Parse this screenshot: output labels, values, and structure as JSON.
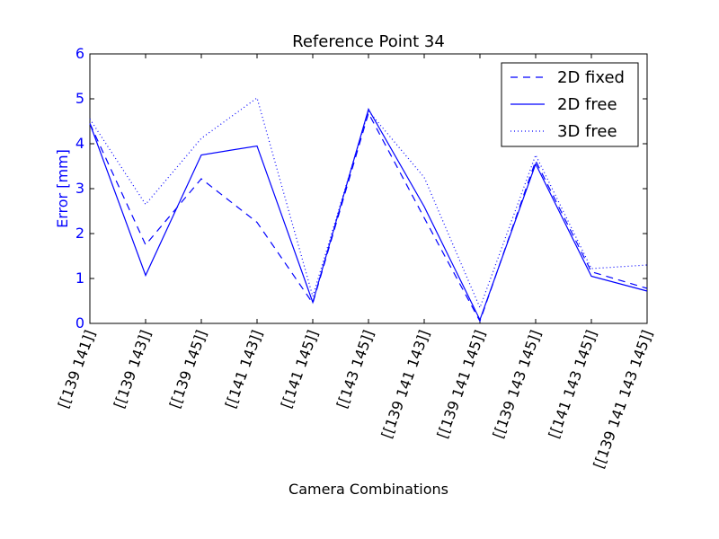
{
  "chart_data": {
    "type": "line",
    "title": "Reference Point 34",
    "xlabel": "Camera Combinations",
    "ylabel": "Error [mm]",
    "ylim": [
      0,
      6
    ],
    "yticks": [
      "0",
      "1",
      "2",
      "3",
      "4",
      "5",
      "6"
    ],
    "categories": [
      "[[139 141]]",
      "[[139 143]]",
      "[[139 145]]",
      "[[141 143]]",
      "[[141 145]]",
      "[[143 145]]",
      "[[139 141 143]]",
      "[[139 141 145]]",
      "[[139 143 145]]",
      "[[141 143 145]]",
      "[[139 141 143 145]]"
    ],
    "series": [
      {
        "name": "2D fixed",
        "style": "dashed",
        "values": [
          4.45,
          1.75,
          3.22,
          2.25,
          0.45,
          4.68,
          2.35,
          0.05,
          3.62,
          1.15,
          0.78
        ]
      },
      {
        "name": "2D free",
        "style": "solid",
        "values": [
          4.45,
          1.07,
          3.75,
          3.95,
          0.47,
          4.77,
          2.6,
          0.08,
          3.55,
          1.05,
          0.72
        ]
      },
      {
        "name": "3D free",
        "style": "dotted",
        "values": [
          4.55,
          2.65,
          4.12,
          5.02,
          0.6,
          4.73,
          3.25,
          0.35,
          3.75,
          1.22,
          1.3
        ]
      }
    ],
    "legend_position": "top-right",
    "grid": false,
    "color": "#0000ff",
    "ylabel_color": "#0000ff"
  }
}
